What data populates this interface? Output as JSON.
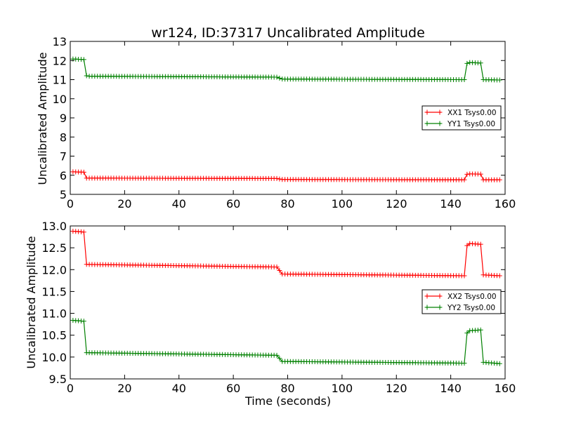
{
  "chart_data": [
    {
      "type": "line",
      "title": "wr124, ID:37317 Uncalibrated Amplitude",
      "xlabel": "",
      "ylabel": "Uncalibrated Amplitude",
      "xlim": [
        0,
        160
      ],
      "ylim": [
        5,
        13
      ],
      "xticks": [
        "0",
        "20",
        "40",
        "60",
        "80",
        "100",
        "120",
        "140",
        "160"
      ],
      "yticks": [
        "5",
        "6",
        "7",
        "8",
        "9",
        "10",
        "11",
        "12",
        "13"
      ],
      "legend_position": "center-right",
      "marker": "+",
      "sample_x": [
        1,
        2,
        3,
        4,
        5,
        6,
        7,
        8,
        9,
        10,
        11,
        12,
        13,
        14,
        15,
        16,
        17,
        18,
        19,
        20,
        21,
        22,
        23,
        24,
        25,
        26,
        27,
        28,
        29,
        30,
        31,
        32,
        33,
        34,
        35,
        36,
        37,
        38,
        39,
        40,
        41,
        42,
        43,
        44,
        45,
        46,
        47,
        48,
        49,
        50,
        51,
        52,
        53,
        54,
        55,
        56,
        57,
        58,
        59,
        60,
        61,
        62,
        63,
        64,
        65,
        66,
        67,
        68,
        69,
        70,
        71,
        72,
        73,
        74,
        75,
        76,
        77,
        78,
        79,
        80,
        81,
        82,
        83,
        84,
        85,
        86,
        87,
        88,
        89,
        90,
        91,
        92,
        93,
        94,
        95,
        96,
        97,
        98,
        99,
        100,
        101,
        102,
        103,
        104,
        105,
        106,
        107,
        108,
        109,
        110,
        111,
        112,
        113,
        114,
        115,
        116,
        117,
        118,
        119,
        120,
        121,
        122,
        123,
        124,
        125,
        126,
        127,
        128,
        129,
        130,
        131,
        132,
        133,
        134,
        135,
        136,
        137,
        138,
        139,
        140,
        141,
        142,
        143,
        144,
        145,
        146,
        147,
        148,
        149,
        150,
        151,
        152,
        153,
        154,
        155,
        156,
        157,
        158
      ],
      "series": [
        {
          "name": "XX1 Tsys0.00",
          "color": "#ff0000",
          "segments": [
            {
              "x": [
                1,
                5
              ],
              "y": [
                6.18,
                6.16
              ]
            },
            {
              "x": [
                5,
                6
              ],
              "y": [
                6.16,
                5.85
              ]
            },
            {
              "x": [
                6,
                76
              ],
              "y": [
                5.85,
                5.83
              ]
            },
            {
              "x": [
                76,
                78
              ],
              "y": [
                5.83,
                5.78
              ]
            },
            {
              "x": [
                78,
                145
              ],
              "y": [
                5.78,
                5.76
              ]
            },
            {
              "x": [
                145,
                146
              ],
              "y": [
                5.76,
                6.05
              ]
            },
            {
              "x": [
                146,
                151
              ],
              "y": [
                6.07,
                6.06
              ]
            },
            {
              "x": [
                151,
                152
              ],
              "y": [
                6.06,
                5.76
              ]
            },
            {
              "x": [
                152,
                158
              ],
              "y": [
                5.76,
                5.76
              ]
            }
          ]
        },
        {
          "name": "YY1 Tsys0.00",
          "color": "#008000",
          "segments": [
            {
              "x": [
                1,
                5
              ],
              "y": [
                12.08,
                12.05
              ]
            },
            {
              "x": [
                5,
                6
              ],
              "y": [
                12.05,
                11.2
              ]
            },
            {
              "x": [
                6,
                76
              ],
              "y": [
                11.18,
                11.13
              ]
            },
            {
              "x": [
                76,
                78
              ],
              "y": [
                11.13,
                11.03
              ]
            },
            {
              "x": [
                78,
                145
              ],
              "y": [
                11.03,
                11.0
              ]
            },
            {
              "x": [
                145,
                146
              ],
              "y": [
                11.0,
                11.85
              ]
            },
            {
              "x": [
                146,
                151
              ],
              "y": [
                11.9,
                11.87
              ]
            },
            {
              "x": [
                151,
                152
              ],
              "y": [
                11.87,
                11.0
              ]
            },
            {
              "x": [
                152,
                158
              ],
              "y": [
                11.0,
                10.98
              ]
            }
          ]
        }
      ]
    },
    {
      "type": "line",
      "title": "",
      "xlabel": "Time (seconds)",
      "ylabel": "Uncalibrated Amplitude",
      "xlim": [
        0,
        160
      ],
      "ylim": [
        9.5,
        13.0
      ],
      "xticks": [
        "0",
        "20",
        "40",
        "60",
        "80",
        "100",
        "120",
        "140",
        "160"
      ],
      "yticks": [
        "9.5",
        "10.0",
        "10.5",
        "11.0",
        "11.5",
        "12.0",
        "12.5",
        "13.0"
      ],
      "legend_position": "center-right",
      "marker": "+",
      "series": [
        {
          "name": "XX2 Tsys0.00",
          "color": "#ff0000",
          "segments": [
            {
              "x": [
                1,
                5
              ],
              "y": [
                12.88,
                12.86
              ]
            },
            {
              "x": [
                5,
                6
              ],
              "y": [
                12.8,
                12.12
              ]
            },
            {
              "x": [
                6,
                76
              ],
              "y": [
                12.12,
                12.06
              ]
            },
            {
              "x": [
                76,
                78
              ],
              "y": [
                12.06,
                11.9
              ]
            },
            {
              "x": [
                78,
                145
              ],
              "y": [
                11.9,
                11.86
              ]
            },
            {
              "x": [
                145,
                146
              ],
              "y": [
                11.86,
                12.55
              ]
            },
            {
              "x": [
                146,
                151
              ],
              "y": [
                12.6,
                12.58
              ]
            },
            {
              "x": [
                151,
                152
              ],
              "y": [
                12.58,
                11.88
              ]
            },
            {
              "x": [
                152,
                158
              ],
              "y": [
                11.88,
                11.86
              ]
            }
          ]
        },
        {
          "name": "YY2 Tsys0.00",
          "color": "#008000",
          "segments": [
            {
              "x": [
                1,
                5
              ],
              "y": [
                10.84,
                10.82
              ]
            },
            {
              "x": [
                5,
                6
              ],
              "y": [
                10.75,
                10.1
              ]
            },
            {
              "x": [
                6,
                76
              ],
              "y": [
                10.1,
                10.04
              ]
            },
            {
              "x": [
                76,
                78
              ],
              "y": [
                10.04,
                9.9
              ]
            },
            {
              "x": [
                78,
                145
              ],
              "y": [
                9.9,
                9.86
              ]
            },
            {
              "x": [
                145,
                146
              ],
              "y": [
                9.86,
                10.55
              ]
            },
            {
              "x": [
                146,
                151
              ],
              "y": [
                10.6,
                10.62
              ]
            },
            {
              "x": [
                151,
                152
              ],
              "y": [
                10.62,
                9.88
              ]
            },
            {
              "x": [
                152,
                158
              ],
              "y": [
                9.88,
                9.85
              ]
            }
          ]
        }
      ]
    }
  ]
}
